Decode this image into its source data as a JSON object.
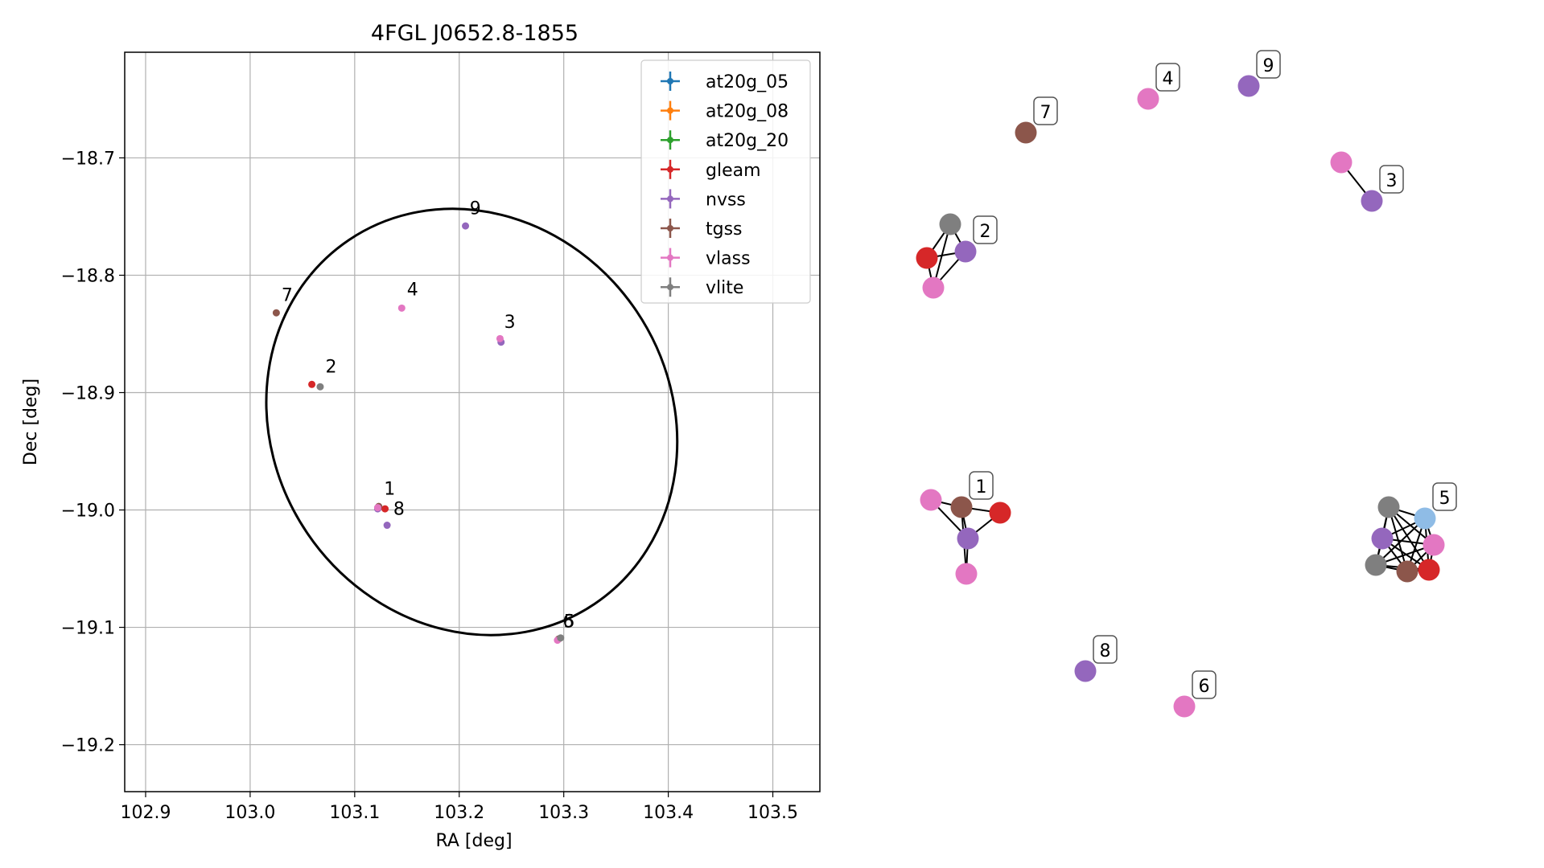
{
  "chart_data": [
    {
      "type": "scatter",
      "title": "4FGL J0652.8-1855",
      "xlabel": "RA [deg]",
      "ylabel": "Dec [deg]",
      "xlim": [
        102.88,
        103.545
      ],
      "ylim": [
        -19.24,
        -18.61
      ],
      "xticks": [
        102.9,
        103.0,
        103.1,
        103.2,
        103.3,
        103.4,
        103.5
      ],
      "xtick_labels": [
        "102.9",
        "103.0",
        "103.1",
        "103.2",
        "103.3",
        "103.4",
        "103.5"
      ],
      "yticks": [
        -18.7,
        -18.8,
        -18.9,
        -19.0,
        -19.1,
        -19.2
      ],
      "ytick_labels": [
        "−18.7",
        "−18.8",
        "−18.9",
        "−19.0",
        "−19.1",
        "−19.2"
      ],
      "grid": true,
      "legend_position": "top-right",
      "series": [
        {
          "name": "at20g_05",
          "color": "#1f77b4",
          "points": []
        },
        {
          "name": "at20g_08",
          "color": "#ff7f0e",
          "points": []
        },
        {
          "name": "at20g_20",
          "color": "#2ca02c",
          "points": []
        },
        {
          "name": "gleam",
          "color": "#d62728",
          "points": [
            [
              103.059,
              -18.893
            ],
            [
              103.129,
              -18.999
            ]
          ]
        },
        {
          "name": "nvss",
          "color": "#9467bd",
          "points": [
            [
              103.206,
              -18.758
            ],
            [
              103.24,
              -18.857
            ],
            [
              103.131,
              -19.013
            ],
            [
              103.122,
              -18.999
            ]
          ]
        },
        {
          "name": "tgss",
          "color": "#8c564b",
          "points": [
            [
              103.025,
              -18.832
            ],
            [
              103.295,
              -19.11
            ],
            [
              103.123,
              -18.997
            ]
          ]
        },
        {
          "name": "vlass",
          "color": "#e377c2",
          "points": [
            [
              103.145,
              -18.828
            ],
            [
              103.239,
              -18.854
            ],
            [
              103.122,
              -18.998
            ],
            [
              103.294,
              -19.111
            ]
          ]
        },
        {
          "name": "vlite",
          "color": "#7f7f7f",
          "points": [
            [
              103.067,
              -18.895
            ],
            [
              103.297,
              -19.109
            ]
          ]
        }
      ],
      "annotations": [
        {
          "text": "1",
          "x": 103.128,
          "y": -18.987
        },
        {
          "text": "2",
          "x": 103.072,
          "y": -18.883
        },
        {
          "text": "3",
          "x": 103.243,
          "y": -18.845
        },
        {
          "text": "4",
          "x": 103.15,
          "y": -18.817
        },
        {
          "text": "5",
          "x": 103.3,
          "y": -19.1
        },
        {
          "text": "6",
          "x": 103.299,
          "y": -19.1
        },
        {
          "text": "7",
          "x": 103.03,
          "y": -18.822
        },
        {
          "text": "8",
          "x": 103.137,
          "y": -19.004
        },
        {
          "text": "9",
          "x": 103.21,
          "y": -18.748
        }
      ],
      "ellipse": {
        "center": [
          103.212,
          -18.925
        ],
        "ra_semi_axis": 0.19,
        "dec_semi_axis": 0.187,
        "angle_deg": -34,
        "color": "#000000"
      }
    },
    {
      "type": "network",
      "nodes": [
        {
          "id": "1",
          "label": "1",
          "color": "#8c564b"
        },
        {
          "id": "1-gleam",
          "label": "",
          "color": "#d62728"
        },
        {
          "id": "1-vlass-a",
          "label": "",
          "color": "#e377c2"
        },
        {
          "id": "1-nvss",
          "label": "",
          "color": "#9467bd"
        },
        {
          "id": "1-vlass-b",
          "label": "",
          "color": "#e377c2"
        },
        {
          "id": "2",
          "label": "2",
          "color": "#9467bd"
        },
        {
          "id": "2-vlite",
          "label": "",
          "color": "#7f7f7f"
        },
        {
          "id": "2-gleam",
          "label": "",
          "color": "#d62728"
        },
        {
          "id": "2-vlass",
          "label": "",
          "color": "#e377c2"
        },
        {
          "id": "3",
          "label": "3",
          "color": "#9467bd"
        },
        {
          "id": "3-vlass",
          "label": "",
          "color": "#e377c2"
        },
        {
          "id": "4",
          "label": "4",
          "color": "#e377c2"
        },
        {
          "id": "5",
          "label": "5",
          "color": "#8fbce6"
        },
        {
          "id": "5-vlite-a",
          "label": "",
          "color": "#7f7f7f"
        },
        {
          "id": "5-nvss",
          "label": "",
          "color": "#9467bd"
        },
        {
          "id": "5-vlite-b",
          "label": "",
          "color": "#7f7f7f"
        },
        {
          "id": "5-tgss",
          "label": "",
          "color": "#8c564b"
        },
        {
          "id": "5-gleam",
          "label": "",
          "color": "#d62728"
        },
        {
          "id": "5-vlass",
          "label": "",
          "color": "#e377c2"
        },
        {
          "id": "6",
          "label": "6",
          "color": "#e377c2"
        },
        {
          "id": "7",
          "label": "7",
          "color": "#8c564b"
        },
        {
          "id": "8",
          "label": "8",
          "color": "#9467bd"
        },
        {
          "id": "9",
          "label": "9",
          "color": "#9467bd"
        }
      ],
      "edges": [
        [
          "1",
          "1-vlass-a"
        ],
        [
          "1",
          "1-nvss"
        ],
        [
          "1",
          "1-gleam"
        ],
        [
          "1",
          "1-vlass-b"
        ],
        [
          "1-vlass-a",
          "1-nvss"
        ],
        [
          "1-gleam",
          "1-nvss"
        ],
        [
          "1-nvss",
          "1-vlass-b"
        ],
        [
          "2",
          "2-vlite"
        ],
        [
          "2",
          "2-gleam"
        ],
        [
          "2",
          "2-vlass"
        ],
        [
          "2-vlite",
          "2-gleam"
        ],
        [
          "2-vlite",
          "2-vlass"
        ],
        [
          "2-gleam",
          "2-vlass"
        ],
        [
          "3",
          "3-vlass"
        ],
        [
          "5",
          "5-vlite-a"
        ],
        [
          "5",
          "5-nvss"
        ],
        [
          "5",
          "5-vlite-b"
        ],
        [
          "5",
          "5-tgss"
        ],
        [
          "5",
          "5-gleam"
        ],
        [
          "5",
          "5-vlass"
        ],
        [
          "5-vlite-a",
          "5-nvss"
        ],
        [
          "5-vlite-a",
          "5-vlite-b"
        ],
        [
          "5-vlite-a",
          "5-tgss"
        ],
        [
          "5-vlite-a",
          "5-gleam"
        ],
        [
          "5-vlite-a",
          "5-vlass"
        ],
        [
          "5-nvss",
          "5-vlite-b"
        ],
        [
          "5-nvss",
          "5-tgss"
        ],
        [
          "5-nvss",
          "5-gleam"
        ],
        [
          "5-nvss",
          "5-vlass"
        ],
        [
          "5-vlite-b",
          "5-tgss"
        ],
        [
          "5-vlite-b",
          "5-gleam"
        ],
        [
          "5-vlite-b",
          "5-vlass"
        ],
        [
          "5-tgss",
          "5-gleam"
        ],
        [
          "5-tgss",
          "5-vlass"
        ],
        [
          "5-gleam",
          "5-vlass"
        ]
      ]
    }
  ]
}
